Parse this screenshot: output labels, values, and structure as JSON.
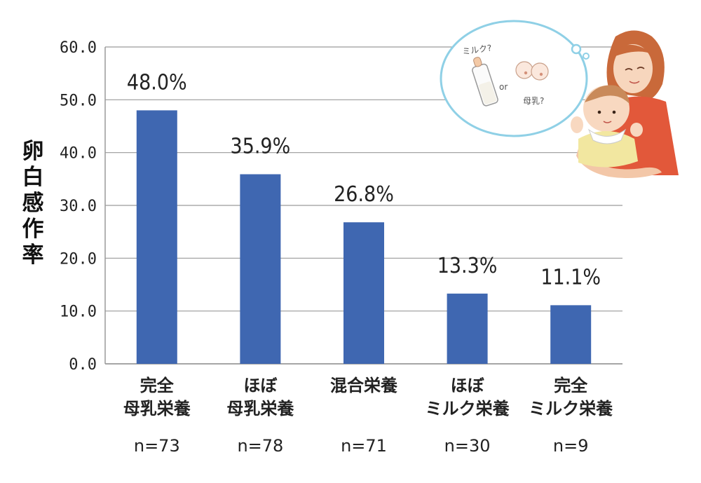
{
  "chart_data": {
    "type": "bar",
    "categories": [
      [
        "完全",
        "母乳栄養"
      ],
      [
        "ほぼ",
        "母乳栄養"
      ],
      [
        "混合栄養"
      ],
      [
        "ほぼ",
        "ミルク栄養"
      ],
      [
        "完全",
        "ミルク栄養"
      ]
    ],
    "sample_sizes": [
      "n=73",
      "n=78",
      "n=71",
      "n=30",
      "n=9"
    ],
    "values": [
      48.0,
      35.9,
      26.8,
      13.3,
      11.1
    ],
    "data_labels": [
      "48.0%",
      "35.9%",
      "26.8%",
      "13.3%",
      "11.1%"
    ],
    "ylabel": "卵白感作率",
    "ylim": [
      0,
      60
    ],
    "yticks": [
      "0.0",
      "10.0",
      "20.0",
      "30.0",
      "40.0",
      "50.0",
      "60.0"
    ],
    "grid": true,
    "bar_color": "#3f67b1",
    "grid_color": "#9a9a9a"
  },
  "illustration": {
    "bubble_text": [
      "ミルク?",
      "or",
      "母乳?"
    ]
  }
}
